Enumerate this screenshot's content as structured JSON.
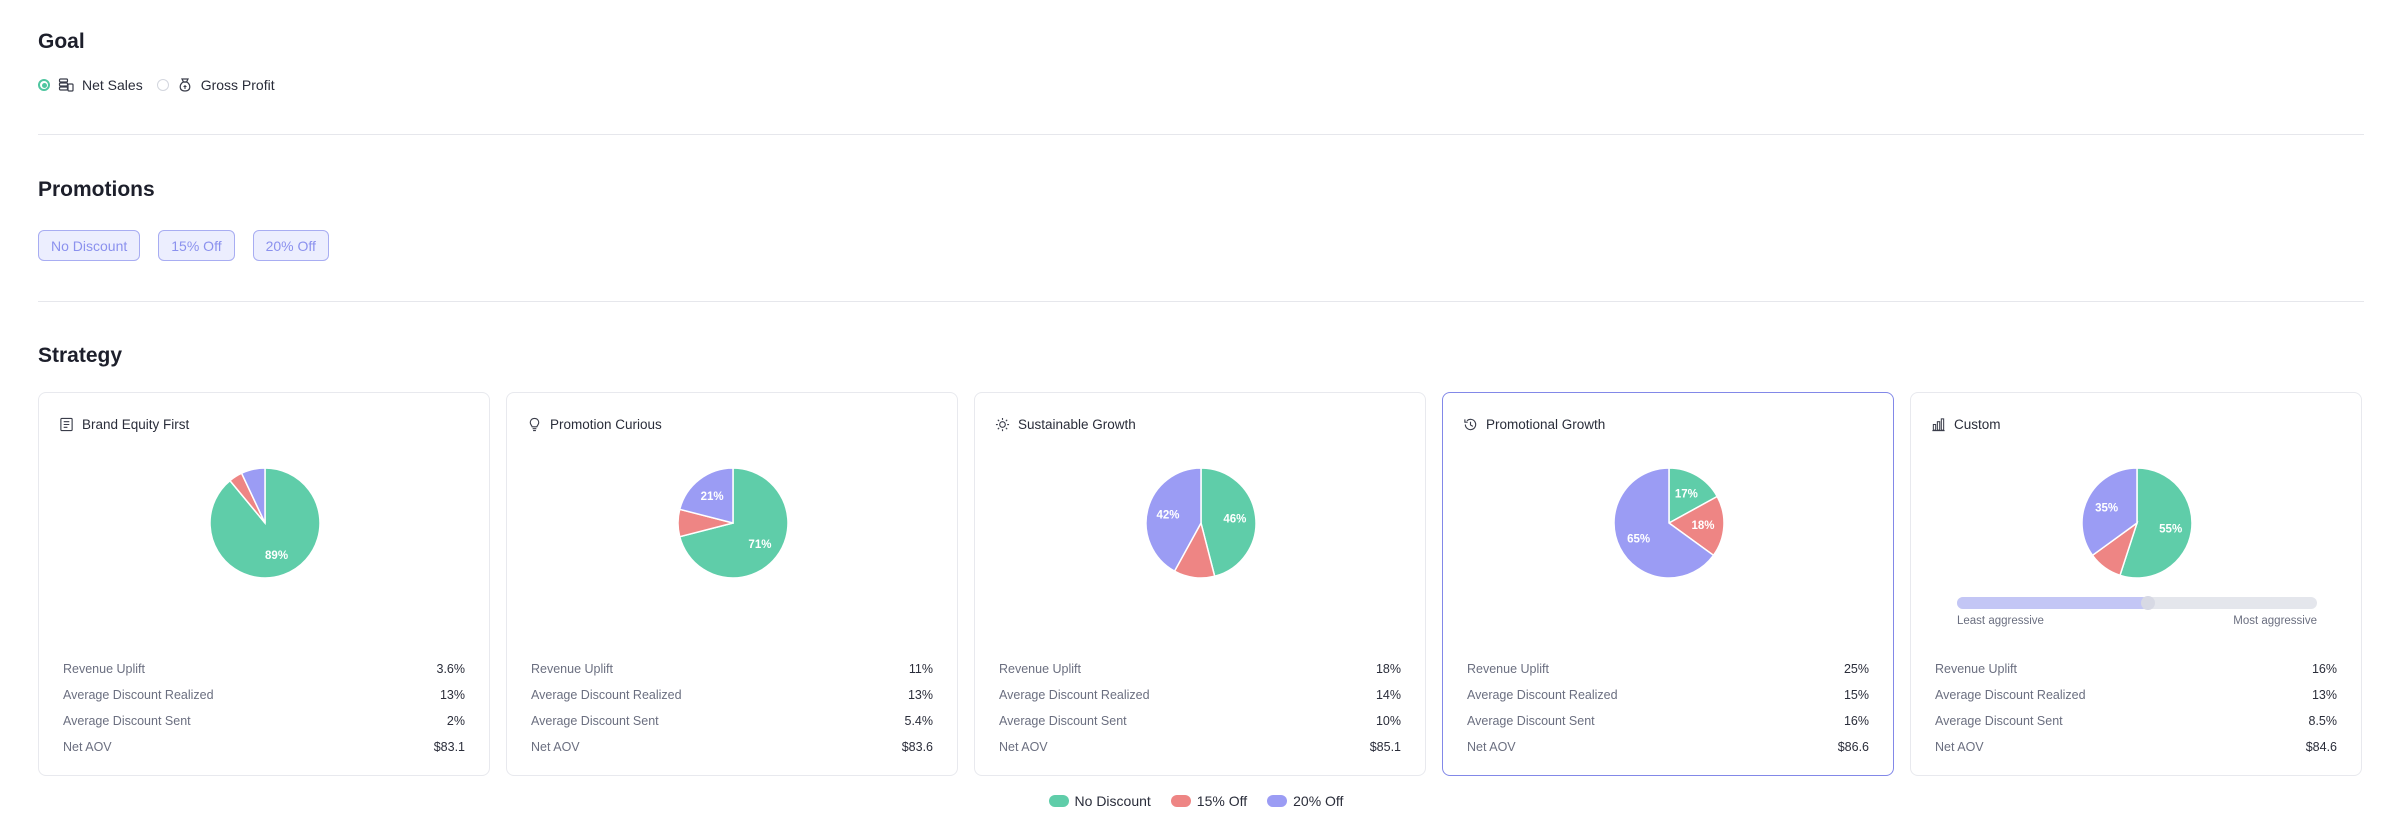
{
  "goal": {
    "title": "Goal",
    "options": [
      {
        "label": "Net Sales",
        "selected": true,
        "icon": "coins-stack-icon"
      },
      {
        "label": "Gross Profit",
        "selected": false,
        "icon": "money-bag-icon"
      }
    ]
  },
  "promotions": {
    "title": "Promotions",
    "chips": [
      "No Discount",
      "15% Off",
      "20% Off"
    ]
  },
  "strategy": {
    "title": "Strategy",
    "metric_labels": [
      "Revenue Uplift",
      "Average Discount Realized",
      "Average Discount Sent",
      "Net AOV"
    ],
    "cards": [
      {
        "name": "Brand Equity First",
        "icon": "book-icon",
        "selected": false,
        "shares": [
          89,
          4,
          7
        ],
        "labels": [
          "89%",
          "",
          ""
        ],
        "metrics": [
          "3.6%",
          "13%",
          "2%",
          "$83.1"
        ]
      },
      {
        "name": "Promotion Curious",
        "icon": "lightbulb-icon",
        "selected": false,
        "shares": [
          71,
          8,
          21
        ],
        "labels": [
          "71%",
          "",
          "21%"
        ],
        "metrics": [
          "11%",
          "13%",
          "5.4%",
          "$83.6"
        ]
      },
      {
        "name": "Sustainable Growth",
        "icon": "sun-icon",
        "selected": false,
        "shares": [
          46,
          12,
          42
        ],
        "labels": [
          "46%",
          "",
          "42%"
        ],
        "metrics": [
          "18%",
          "14%",
          "10%",
          "$85.1"
        ]
      },
      {
        "name": "Promotional Growth",
        "icon": "history-icon",
        "selected": true,
        "shares": [
          17,
          18,
          65
        ],
        "labels": [
          "17%",
          "18%",
          "65%"
        ],
        "metrics": [
          "25%",
          "15%",
          "16%",
          "$86.6"
        ]
      },
      {
        "name": "Custom",
        "icon": "bar-chart-icon",
        "selected": false,
        "shares": [
          55,
          10,
          35
        ],
        "labels": [
          "55%",
          "",
          "35%"
        ],
        "metrics": [
          "16%",
          "13%",
          "8.5%",
          "$84.6"
        ],
        "slider": {
          "value_fraction": 0.53,
          "min_label": "Least aggressive",
          "max_label": "Most aggressive"
        }
      }
    ]
  },
  "legend": [
    {
      "label": "No Discount",
      "color": "#5fcda9"
    },
    {
      "label": "15% Off",
      "color": "#ee8584"
    },
    {
      "label": "20% Off",
      "color": "#9b9cf4"
    }
  ],
  "colors": {
    "no_discount": "#5fcda9",
    "off15": "#ee8584",
    "off20": "#9b9cf4",
    "accent": "#8288e8"
  }
}
